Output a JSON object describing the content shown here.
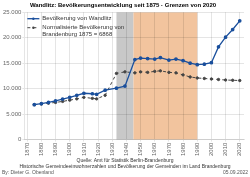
{
  "chart_data": {
    "type": "line",
    "title": "Wandlitz: Bevölkerungsentwicklung seit 1875 · Grenzen von 2020",
    "x": [
      1875,
      1880,
      1885,
      1890,
      1895,
      1900,
      1905,
      1910,
      1916,
      1919,
      1925,
      1933,
      1939,
      1946,
      1950,
      1955,
      1960,
      1964,
      1970,
      1975,
      1980,
      1985,
      1990,
      1995,
      2000,
      2005,
      2010,
      2015,
      2020
    ],
    "series": [
      {
        "name": "Bevölkerung von Wandlitz",
        "color": "#1a4f9c",
        "marker": "circle",
        "line_style": "solid",
        "values": [
          6868,
          7050,
          7300,
          7600,
          7950,
          8300,
          8700,
          9100,
          9000,
          8900,
          9700,
          10100,
          10500,
          15700,
          16000,
          15900,
          15800,
          16100,
          15600,
          15800,
          15500,
          15000,
          14700,
          14800,
          15100,
          18200,
          20100,
          21600,
          23300
        ]
      },
      {
        "name": "Normalisierte Bevölkerung von\nBrandenburg 1875 = 6868",
        "color": "#444444",
        "marker": "circle",
        "line_style": "dashed",
        "values": [
          6868,
          7000,
          7150,
          7300,
          7500,
          7750,
          8000,
          8300,
          8100,
          8000,
          8700,
          13000,
          13300,
          13100,
          13300,
          13200,
          13400,
          13500,
          13200,
          13100,
          12700,
          12300,
          12100,
          12000,
          11900,
          11800,
          11700,
          11650,
          11600
        ]
      }
    ],
    "xlim": [
      1868,
      2023
    ],
    "xticks": [
      1870,
      1880,
      1890,
      1900,
      1910,
      1920,
      1930,
      1940,
      1950,
      1960,
      1970,
      1980,
      1990,
      2000,
      2010,
      2020
    ],
    "ylim": [
      0,
      25000
    ],
    "yticks": [
      0,
      {
        "value": 5000,
        "label": "5.000"
      },
      {
        "value": 10000,
        "label": "10.000"
      },
      {
        "value": 15000,
        "label": "15.000"
      },
      {
        "value": 20000,
        "label": "20.000"
      },
      {
        "value": 25000,
        "label": "25.000"
      }
    ],
    "spans": [
      {
        "start": 1933,
        "end": 1945,
        "color": "#c8c8c8"
      },
      {
        "start": 1945,
        "end": 1990,
        "color": "#f2c49e"
      }
    ],
    "annotations": [
      "Quelle: Amt für Statistik Berlin-Brandenburg",
      "Historische Gemeindeeinwohnerzahlen und Bevölkerung der Gemeinden im Land Brandenburg",
      "By: Dieter G. Obenland",
      "05.09.2022"
    ],
    "grid": true,
    "legend": "upper left"
  }
}
